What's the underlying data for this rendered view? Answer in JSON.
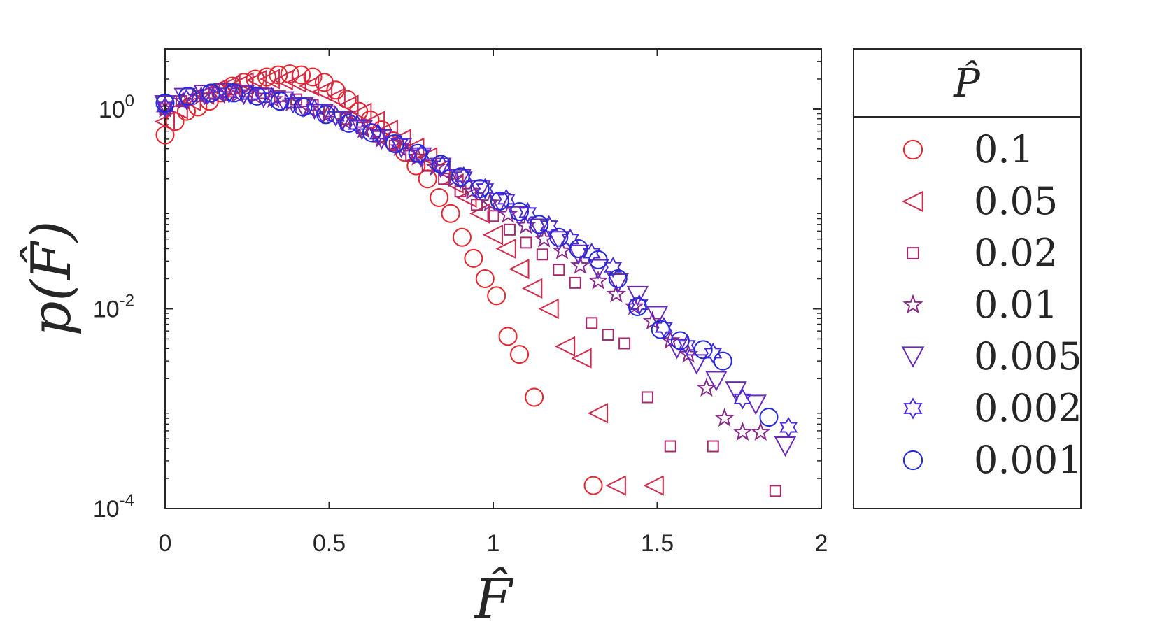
{
  "chart_data": {
    "type": "scatter",
    "xlabel": "F̂",
    "ylabel": "p(F̂)",
    "yscale": "log",
    "xlim": [
      0,
      2
    ],
    "ylim": [
      0.0001,
      4
    ],
    "grid": false,
    "x_ticks": [
      "0",
      "0.5",
      "1",
      "1.5",
      "2"
    ],
    "y_ticks": [
      {
        "base": "10",
        "exp": "0"
      },
      {
        "base": "10",
        "exp": "-2"
      },
      {
        "base": "10",
        "exp": "-4"
      }
    ],
    "legend": {
      "title": "P̂",
      "placement": "outside-right"
    },
    "series": [
      {
        "name": "0.1",
        "marker": "circle",
        "color": "#e8232b",
        "x": [
          0.0,
          0.03,
          0.065,
          0.1,
          0.135,
          0.17,
          0.205,
          0.24,
          0.275,
          0.31,
          0.345,
          0.38,
          0.415,
          0.45,
          0.485,
          0.52,
          0.555,
          0.59,
          0.625,
          0.66,
          0.695,
          0.73,
          0.765,
          0.8,
          0.835,
          0.87,
          0.905,
          0.94,
          0.975,
          1.01,
          1.045,
          1.08,
          1.125,
          1.305
        ],
        "y": [
          0.55,
          0.75,
          0.95,
          1.05,
          1.2,
          1.45,
          1.7,
          1.85,
          2.0,
          2.1,
          2.2,
          2.25,
          2.2,
          2.1,
          1.85,
          1.55,
          1.25,
          0.95,
          0.78,
          0.62,
          0.48,
          0.37,
          0.27,
          0.2,
          0.13,
          0.09,
          0.052,
          0.032,
          0.02,
          0.0135,
          0.0053,
          0.0035,
          0.0013,
          0.00017
        ]
      },
      {
        "name": "0.05",
        "marker": "triangle-left",
        "color": "#d42a4a",
        "x": [
          0.0,
          0.04,
          0.08,
          0.12,
          0.16,
          0.2,
          0.24,
          0.28,
          0.32,
          0.36,
          0.4,
          0.44,
          0.48,
          0.52,
          0.56,
          0.6,
          0.64,
          0.68,
          0.72,
          0.76,
          0.8,
          0.84,
          0.88,
          0.92,
          0.96,
          1.0,
          1.04,
          1.08,
          1.12,
          1.17,
          1.22,
          1.27,
          1.32,
          1.375,
          1.49
        ],
        "y": [
          0.75,
          1.0,
          1.2,
          1.4,
          1.6,
          1.75,
          1.85,
          1.95,
          2.0,
          1.95,
          1.85,
          1.7,
          1.5,
          1.3,
          1.1,
          0.92,
          0.76,
          0.62,
          0.5,
          0.41,
          0.33,
          0.25,
          0.18,
          0.13,
          0.09,
          0.055,
          0.04,
          0.025,
          0.016,
          0.01,
          0.0042,
          0.0032,
          0.0009,
          0.00017,
          0.00017
        ]
      },
      {
        "name": "0.02",
        "marker": "square",
        "color": "#a82a6e",
        "x": [
          0.0,
          0.05,
          0.1,
          0.15,
          0.2,
          0.25,
          0.3,
          0.35,
          0.4,
          0.45,
          0.5,
          0.55,
          0.6,
          0.65,
          0.7,
          0.75,
          0.8,
          0.85,
          0.9,
          0.95,
          1.0,
          1.05,
          1.1,
          1.15,
          1.2,
          1.25,
          1.3,
          1.35,
          1.4,
          1.47,
          1.54,
          1.67,
          1.86
        ],
        "y": [
          1.0,
          1.2,
          1.35,
          1.45,
          1.5,
          1.5,
          1.45,
          1.35,
          1.25,
          1.1,
          0.95,
          0.8,
          0.65,
          0.53,
          0.43,
          0.34,
          0.27,
          0.2,
          0.15,
          0.11,
          0.085,
          0.062,
          0.046,
          0.035,
          0.0246,
          0.0182,
          0.0072,
          0.0055,
          0.0045,
          0.0013,
          0.00042,
          0.00042,
          0.00015
        ]
      },
      {
        "name": "0.01",
        "marker": "star-5",
        "color": "#8a2a8a",
        "x": [
          0.0,
          0.055,
          0.11,
          0.165,
          0.22,
          0.275,
          0.33,
          0.385,
          0.44,
          0.495,
          0.55,
          0.605,
          0.66,
          0.715,
          0.77,
          0.825,
          0.88,
          0.935,
          0.99,
          1.045,
          1.1,
          1.155,
          1.21,
          1.265,
          1.32,
          1.375,
          1.43,
          1.485,
          1.54,
          1.595,
          1.65,
          1.705,
          1.76,
          1.815
        ],
        "y": [
          1.0,
          1.2,
          1.35,
          1.4,
          1.4,
          1.35,
          1.25,
          1.15,
          1.0,
          0.88,
          0.75,
          0.62,
          0.5,
          0.41,
          0.33,
          0.26,
          0.2,
          0.15,
          0.115,
          0.088,
          0.068,
          0.05,
          0.038,
          0.027,
          0.019,
          0.014,
          0.0105,
          0.0075,
          0.0048,
          0.0035,
          0.0016,
          0.0008,
          0.00058,
          0.00058
        ]
      },
      {
        "name": "0.005",
        "marker": "triangle-down",
        "color": "#6a2ab8",
        "x": [
          0.0,
          0.06,
          0.12,
          0.18,
          0.24,
          0.3,
          0.36,
          0.42,
          0.48,
          0.54,
          0.6,
          0.66,
          0.72,
          0.78,
          0.84,
          0.9,
          0.96,
          1.02,
          1.08,
          1.14,
          1.2,
          1.26,
          1.32,
          1.38,
          1.44,
          1.5,
          1.56,
          1.62,
          1.68,
          1.74,
          1.8,
          1.89
        ],
        "y": [
          1.1,
          1.3,
          1.4,
          1.45,
          1.4,
          1.3,
          1.2,
          1.05,
          0.9,
          0.76,
          0.62,
          0.5,
          0.41,
          0.33,
          0.26,
          0.2,
          0.155,
          0.115,
          0.085,
          0.064,
          0.048,
          0.035,
          0.025,
          0.018,
          0.0135,
          0.0085,
          0.004,
          0.0028,
          0.0019,
          0.0015,
          0.0011,
          0.00042
        ]
      },
      {
        "name": "0.002",
        "marker": "star-6",
        "color": "#4a2ad8",
        "x": [
          0.0,
          0.065,
          0.13,
          0.195,
          0.26,
          0.325,
          0.39,
          0.455,
          0.52,
          0.585,
          0.65,
          0.715,
          0.78,
          0.845,
          0.91,
          0.975,
          1.04,
          1.105,
          1.17,
          1.235,
          1.3,
          1.365,
          1.445,
          1.52,
          1.59,
          1.67,
          1.76,
          1.9
        ],
        "y": [
          1.05,
          1.25,
          1.4,
          1.45,
          1.4,
          1.3,
          1.15,
          1.0,
          0.85,
          0.7,
          0.56,
          0.45,
          0.35,
          0.27,
          0.21,
          0.16,
          0.125,
          0.092,
          0.068,
          0.05,
          0.036,
          0.026,
          0.011,
          0.0065,
          0.0043,
          0.0036,
          0.00125,
          0.00065
        ]
      },
      {
        "name": "0.001",
        "marker": "circle",
        "color": "#2028e0",
        "x": [
          0.0,
          0.07,
          0.14,
          0.21,
          0.28,
          0.35,
          0.42,
          0.49,
          0.56,
          0.63,
          0.7,
          0.77,
          0.84,
          0.9,
          0.96,
          1.02,
          1.08,
          1.14,
          1.2,
          1.26,
          1.32,
          1.38,
          1.44,
          1.51,
          1.57,
          1.64,
          1.7,
          1.84
        ],
        "y": [
          1.15,
          1.35,
          1.45,
          1.45,
          1.35,
          1.2,
          1.05,
          0.88,
          0.72,
          0.58,
          0.45,
          0.36,
          0.28,
          0.21,
          0.16,
          0.12,
          0.094,
          0.07,
          0.052,
          0.04,
          0.031,
          0.02,
          0.0105,
          0.0062,
          0.0048,
          0.0039,
          0.003,
          0.00082
        ]
      }
    ]
  }
}
